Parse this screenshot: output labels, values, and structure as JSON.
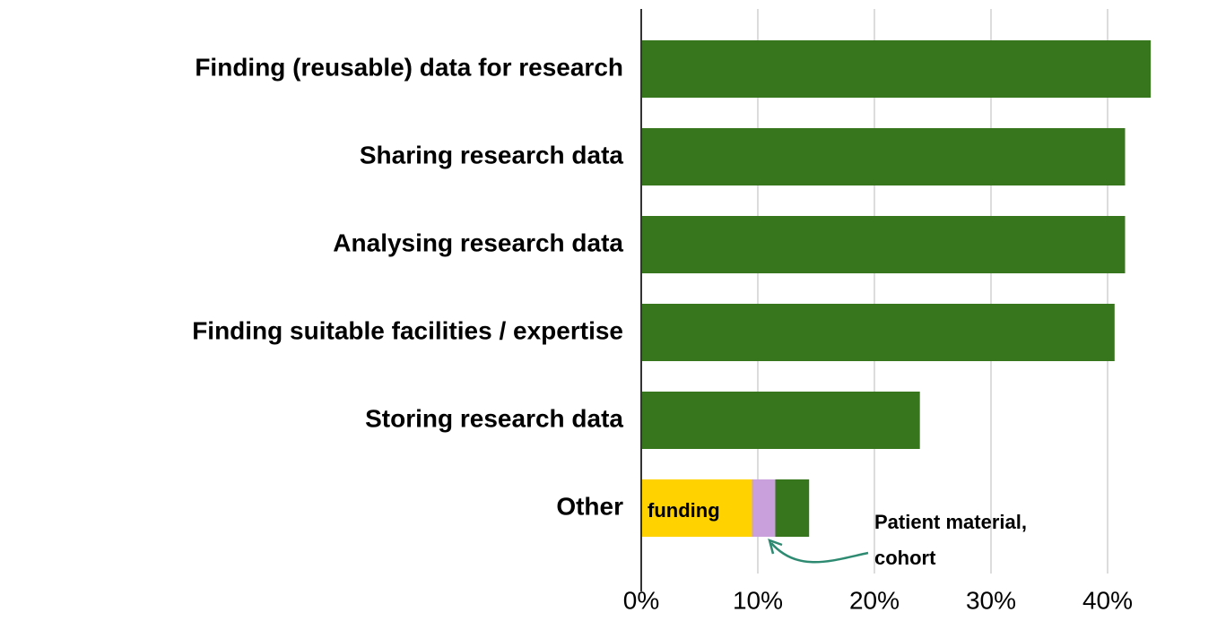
{
  "chart_data": {
    "type": "bar",
    "orientation": "horizontal",
    "categories": [
      "Finding (reusable) data for research",
      "Sharing research data",
      "Analysing research data",
      "Finding suitable facilities / expertise",
      "Storing research data",
      "Other"
    ],
    "series": [
      {
        "color": "#ffd200",
        "values": [
          null,
          null,
          null,
          null,
          null,
          9.5
        ]
      },
      {
        "color": "#c9a0dc",
        "values": [
          null,
          null,
          null,
          null,
          null,
          2
        ]
      },
      {
        "color": "#38761d",
        "values": [
          43.7,
          41.5,
          41.5,
          40.6,
          23.9,
          2.9
        ]
      }
    ],
    "xlim": [
      0,
      45
    ],
    "xticks": [
      {
        "value": 0,
        "label": "0%"
      },
      {
        "value": 10,
        "label": "10%"
      },
      {
        "value": 20,
        "label": "20%"
      },
      {
        "value": 30,
        "label": "30%"
      },
      {
        "value": 40,
        "label": "40%"
      }
    ],
    "grid": true,
    "annotations": [
      {
        "text": "funding"
      },
      {
        "lines": [
          "Patient material,",
          "cohort"
        ],
        "color": "#2e8b72"
      }
    ]
  }
}
